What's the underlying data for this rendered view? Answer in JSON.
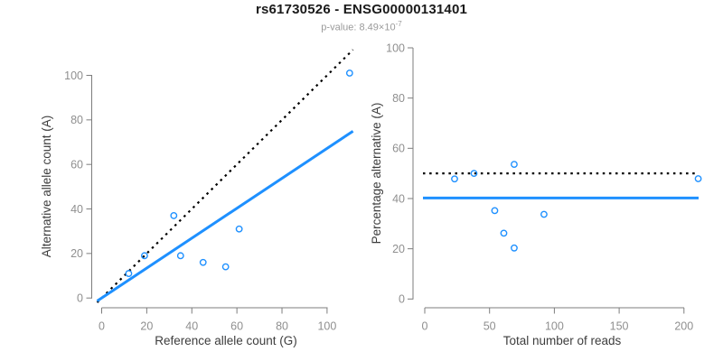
{
  "header": {
    "title": "rs61730526 - ENSG00000131401",
    "pvalue_text": "p-value: 8.49×10",
    "pvalue_exponent": "-7"
  },
  "colors": {
    "accent_blue": "#1E90FF",
    "dotted_line": "#000000",
    "axis_line": "#7d7d7d",
    "tick_label": "#8f8f8f",
    "axis_title": "#3d3d3d",
    "title": "#1a1a1a",
    "subtitle": "#9a9a9a",
    "background": "#ffffff"
  },
  "chart_data": [
    {
      "type": "scatter",
      "panel": "left",
      "xlabel": "Reference allele count (G)",
      "ylabel": "Alternative allele count (A)",
      "x_ticks": [
        0,
        20,
        40,
        60,
        80,
        100
      ],
      "y_ticks": [
        0,
        20,
        40,
        60,
        80,
        100
      ],
      "xlim": [
        0,
        112
      ],
      "ylim": [
        0,
        112
      ],
      "grid": false,
      "legend": "none",
      "marker": "open-circle",
      "points": [
        [
          12,
          11
        ],
        [
          19,
          19
        ],
        [
          32,
          37
        ],
        [
          35,
          19
        ],
        [
          45,
          16
        ],
        [
          55,
          14
        ],
        [
          61,
          31
        ],
        [
          110,
          101
        ]
      ],
      "lines": [
        {
          "name": "identity-line",
          "style": "dotted",
          "color": "#000000",
          "type": "ab",
          "slope": 1,
          "intercept": 0
        },
        {
          "name": "fitted-ratio-line",
          "style": "solid",
          "color": "#1E90FF",
          "type": "ab",
          "slope": 0.672,
          "intercept": 0
        }
      ]
    },
    {
      "type": "scatter",
      "panel": "right",
      "xlabel": "Total number of reads",
      "ylabel": "Percentage alternative (A)",
      "x_ticks": [
        0,
        50,
        100,
        150,
        200
      ],
      "y_ticks": [
        0,
        20,
        40,
        60,
        80,
        100
      ],
      "xlim": [
        0,
        212
      ],
      "ylim": [
        0,
        100
      ],
      "grid": false,
      "legend": "none",
      "marker": "open-circle",
      "points": [
        [
          23,
          47.8
        ],
        [
          38,
          50
        ],
        [
          54,
          35.2
        ],
        [
          61,
          26.2
        ],
        [
          69,
          53.6
        ],
        [
          69,
          20.3
        ],
        [
          92,
          33.7
        ],
        [
          211,
          47.9
        ]
      ],
      "lines": [
        {
          "name": "expected-50pct-line",
          "style": "dotted",
          "color": "#000000",
          "type": "h",
          "y": 50
        },
        {
          "name": "observed-pct-line",
          "style": "solid",
          "color": "#1E90FF",
          "type": "h",
          "y": 40.2
        }
      ]
    }
  ]
}
